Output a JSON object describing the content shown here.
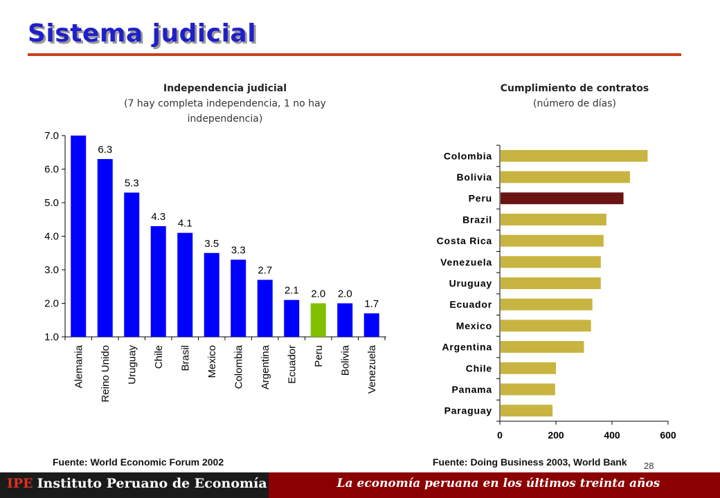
{
  "page": {
    "title": "Sistema judicial",
    "page_number": "28"
  },
  "footer": {
    "brand_abbr": "IPE",
    "brand_name": "Instituto Peruano de Economía",
    "slogan": "La economía peruana en los últimos treinta años"
  },
  "colors": {
    "title": "#2020c8",
    "rule": "#c8401a",
    "left_bar": "#0000ff",
    "left_highlight": "#80c000",
    "right_bar": "#c8b440",
    "right_highlight": "#6b1414",
    "footer_dark": "#1b1b1b",
    "footer_red": "#8b0000"
  },
  "chart_data": [
    {
      "type": "bar",
      "title": "Independencia judicial",
      "subtitle": "(7 hay completa independencia, 1 no hay independencia)",
      "source": "Fuente: World Economic Forum 2002",
      "categories": [
        "Alemania",
        "Reino Unido",
        "Uruguay",
        "Chile",
        "Brasil",
        "Mexico",
        "Colombia",
        "Argentina",
        "Ecuador",
        "Peru",
        "Bolivia",
        "Venezuela"
      ],
      "values": [
        7.0,
        6.3,
        5.3,
        4.3,
        4.1,
        3.5,
        3.3,
        2.7,
        2.1,
        2.0,
        2.0,
        1.7
      ],
      "data_labels": [
        "",
        "6.3",
        "5.3",
        "4.3",
        "4.1",
        "3.5",
        "3.3",
        "2.7",
        "2.1",
        "2.0",
        "2.0",
        "1.7"
      ],
      "highlight": "Peru",
      "ylim": [
        1.0,
        7.0
      ],
      "yticks": [
        "1.0",
        "2.0",
        "3.0",
        "4.0",
        "5.0",
        "6.0",
        "7.0"
      ],
      "grid": false
    },
    {
      "type": "bar",
      "orientation": "horizontal",
      "title": "Cumplimiento de contratos",
      "subtitle": "(número de días)",
      "source": "Fuente: Doing Business 2003, World Bank",
      "categories": [
        "Colombia",
        "Bolivia",
        "Peru",
        "Brazil",
        "Costa Rica",
        "Venezuela",
        "Uruguay",
        "Ecuador",
        "Mexico",
        "Argentina",
        "Chile",
        "Panama",
        "Paraguay"
      ],
      "values": [
        527,
        464,
        441,
        380,
        370,
        360,
        360,
        330,
        325,
        300,
        200,
        197,
        188
      ],
      "highlight": "Peru",
      "xlim": [
        0,
        600
      ],
      "xticks": [
        "0",
        "200",
        "400",
        "600"
      ],
      "grid": false
    }
  ]
}
